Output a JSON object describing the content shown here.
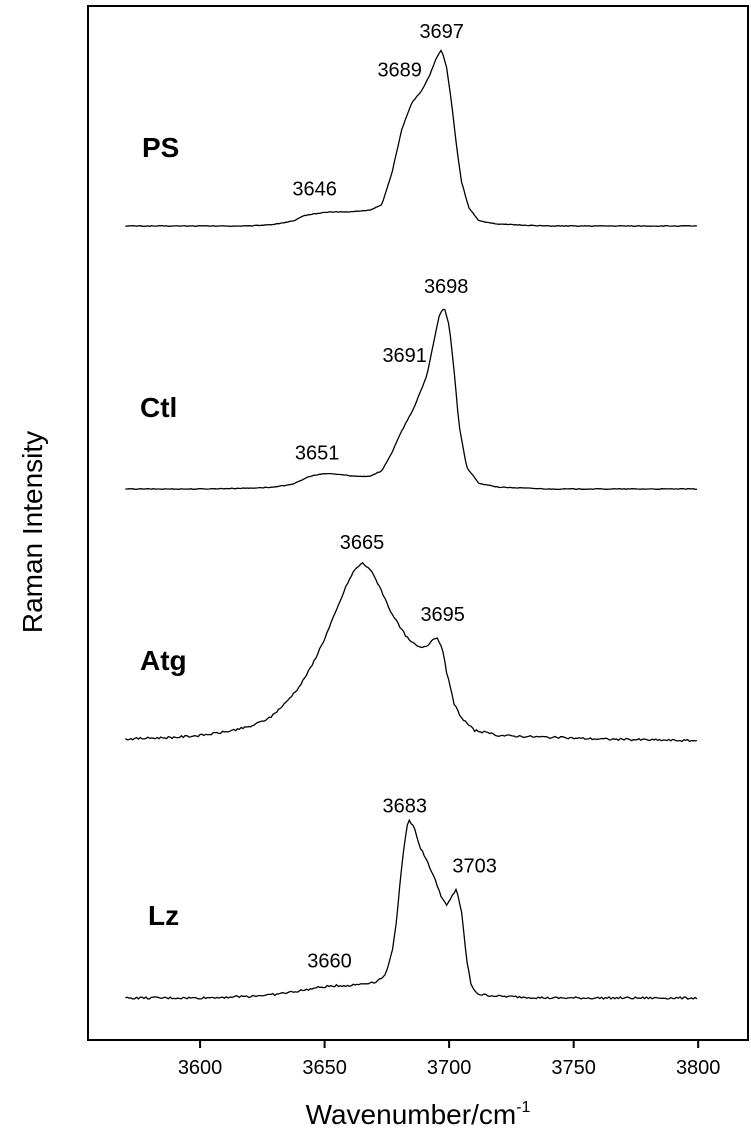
{
  "chart_data": {
    "type": "line",
    "xlabel": "Wavenumber/cm",
    "xlabel_superscript": "-1",
    "ylabel": "Raman Intensity",
    "xlim": [
      3555,
      3820
    ],
    "x_ticks": [
      3600,
      3650,
      3700,
      3750,
      3800
    ],
    "y_ticks_shown": false,
    "grid": false,
    "legend": "none",
    "line_color": "#000000",
    "series": [
      {
        "name": "PS",
        "points": [
          [
            3570,
            0.0
          ],
          [
            3600,
            0.0
          ],
          [
            3620,
            0.0
          ],
          [
            3630,
            0.01
          ],
          [
            3638,
            0.03
          ],
          [
            3642,
            0.06
          ],
          [
            3646,
            0.07
          ],
          [
            3652,
            0.08
          ],
          [
            3660,
            0.08
          ],
          [
            3668,
            0.09
          ],
          [
            3673,
            0.12
          ],
          [
            3677,
            0.3
          ],
          [
            3681,
            0.55
          ],
          [
            3685,
            0.7
          ],
          [
            3689,
            0.77
          ],
          [
            3692,
            0.85
          ],
          [
            3695,
            0.96
          ],
          [
            3697,
            1.0
          ],
          [
            3699,
            0.9
          ],
          [
            3701,
            0.7
          ],
          [
            3703,
            0.45
          ],
          [
            3705,
            0.25
          ],
          [
            3708,
            0.1
          ],
          [
            3712,
            0.03
          ],
          [
            3720,
            0.01
          ],
          [
            3740,
            0.0
          ],
          [
            3760,
            0.0
          ],
          [
            3800,
            0.0
          ]
        ],
        "peaks": [
          {
            "x": 3646,
            "label": "3646"
          },
          {
            "x": 3689,
            "label": "3689"
          },
          {
            "x": 3697,
            "label": "3697"
          }
        ]
      },
      {
        "name": "Ctl",
        "points": [
          [
            3570,
            0.0
          ],
          [
            3600,
            0.0
          ],
          [
            3620,
            0.005
          ],
          [
            3630,
            0.01
          ],
          [
            3638,
            0.03
          ],
          [
            3644,
            0.07
          ],
          [
            3648,
            0.08
          ],
          [
            3651,
            0.085
          ],
          [
            3656,
            0.08
          ],
          [
            3662,
            0.07
          ],
          [
            3668,
            0.07
          ],
          [
            3673,
            0.1
          ],
          [
            3677,
            0.2
          ],
          [
            3681,
            0.32
          ],
          [
            3686,
            0.45
          ],
          [
            3691,
            0.62
          ],
          [
            3694,
            0.82
          ],
          [
            3696,
            0.95
          ],
          [
            3698,
            1.0
          ],
          [
            3700,
            0.9
          ],
          [
            3702,
            0.65
          ],
          [
            3704,
            0.35
          ],
          [
            3707,
            0.12
          ],
          [
            3712,
            0.03
          ],
          [
            3720,
            0.01
          ],
          [
            3740,
            0.0
          ],
          [
            3800,
            0.0
          ]
        ],
        "peaks": [
          {
            "x": 3651,
            "label": "3651"
          },
          {
            "x": 3691,
            "label": "3691"
          },
          {
            "x": 3698,
            "label": "3698"
          }
        ]
      },
      {
        "name": "Atg",
        "points": [
          [
            3570,
            0.0
          ],
          [
            3580,
            0.005
          ],
          [
            3590,
            0.01
          ],
          [
            3600,
            0.02
          ],
          [
            3610,
            0.04
          ],
          [
            3620,
            0.07
          ],
          [
            3628,
            0.12
          ],
          [
            3634,
            0.2
          ],
          [
            3640,
            0.3
          ],
          [
            3645,
            0.42
          ],
          [
            3650,
            0.57
          ],
          [
            3655,
            0.74
          ],
          [
            3659,
            0.88
          ],
          [
            3662,
            0.96
          ],
          [
            3665,
            1.0
          ],
          [
            3668,
            0.97
          ],
          [
            3672,
            0.87
          ],
          [
            3676,
            0.74
          ],
          [
            3680,
            0.64
          ],
          [
            3684,
            0.56
          ],
          [
            3688,
            0.52
          ],
          [
            3691,
            0.53
          ],
          [
            3693,
            0.56
          ],
          [
            3695,
            0.58
          ],
          [
            3697,
            0.53
          ],
          [
            3699,
            0.38
          ],
          [
            3702,
            0.2
          ],
          [
            3705,
            0.12
          ],
          [
            3710,
            0.05
          ],
          [
            3720,
            0.02
          ],
          [
            3740,
            0.01
          ],
          [
            3760,
            0.0
          ],
          [
            3800,
            -0.01
          ]
        ],
        "peaks": [
          {
            "x": 3665,
            "label": "3665"
          },
          {
            "x": 3695,
            "label": "3695"
          }
        ]
      },
      {
        "name": "Lz",
        "points": [
          [
            3570,
            0.0
          ],
          [
            3600,
            0.0
          ],
          [
            3620,
            0.01
          ],
          [
            3630,
            0.02
          ],
          [
            3640,
            0.04
          ],
          [
            3648,
            0.06
          ],
          [
            3655,
            0.07
          ],
          [
            3660,
            0.07
          ],
          [
            3665,
            0.08
          ],
          [
            3670,
            0.09
          ],
          [
            3674,
            0.12
          ],
          [
            3677,
            0.25
          ],
          [
            3679,
            0.45
          ],
          [
            3681,
            0.75
          ],
          [
            3683,
            0.97
          ],
          [
            3684,
            1.0
          ],
          [
            3686,
            0.97
          ],
          [
            3688,
            0.86
          ],
          [
            3691,
            0.78
          ],
          [
            3694,
            0.68
          ],
          [
            3697,
            0.57
          ],
          [
            3699,
            0.52
          ],
          [
            3701,
            0.57
          ],
          [
            3703,
            0.62
          ],
          [
            3705,
            0.48
          ],
          [
            3707,
            0.22
          ],
          [
            3709,
            0.06
          ],
          [
            3712,
            0.02
          ],
          [
            3720,
            0.01
          ],
          [
            3740,
            0.0
          ],
          [
            3800,
            0.0
          ]
        ],
        "peaks": [
          {
            "x": 3660,
            "label": "3660"
          },
          {
            "x": 3683,
            "label": "3683"
          },
          {
            "x": 3703,
            "label": "3703"
          }
        ]
      }
    ]
  }
}
